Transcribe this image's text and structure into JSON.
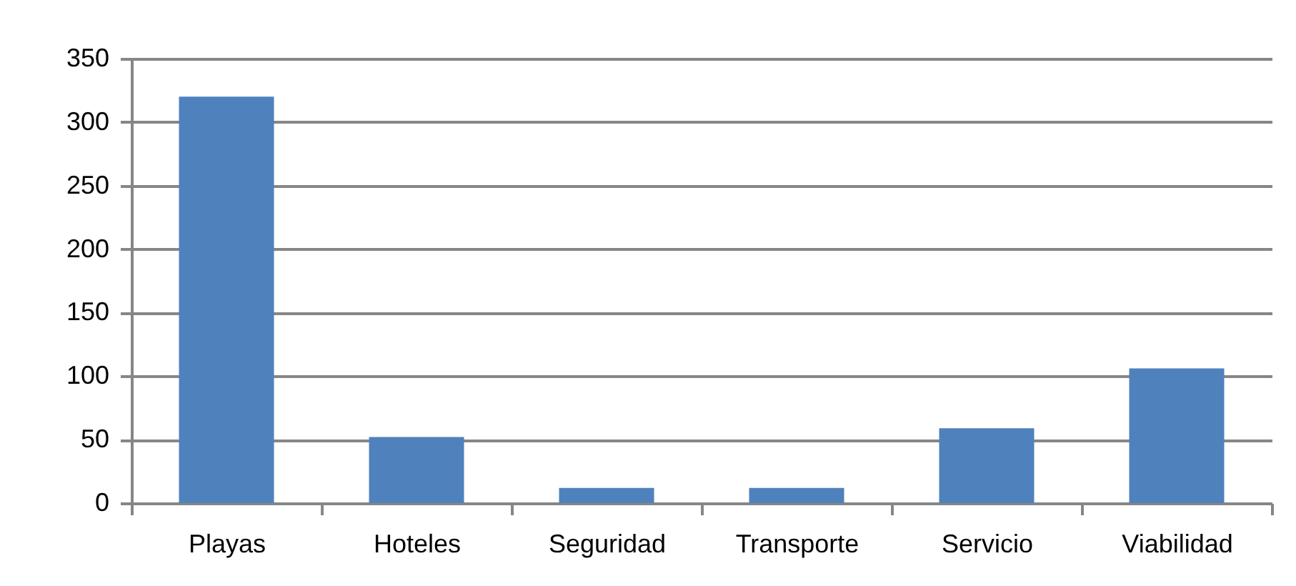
{
  "chart_data": {
    "type": "bar",
    "categories": [
      "Playas",
      "Hoteles",
      "Seguridad",
      "Transporte",
      "Servicio",
      "Viabilidad"
    ],
    "values": [
      320,
      52,
      12,
      12,
      59,
      106
    ],
    "color": "#4f81bd",
    "ylim": [
      0,
      350
    ],
    "yticks": [
      0,
      50,
      100,
      150,
      200,
      250,
      300,
      350
    ],
    "grid": "y"
  }
}
